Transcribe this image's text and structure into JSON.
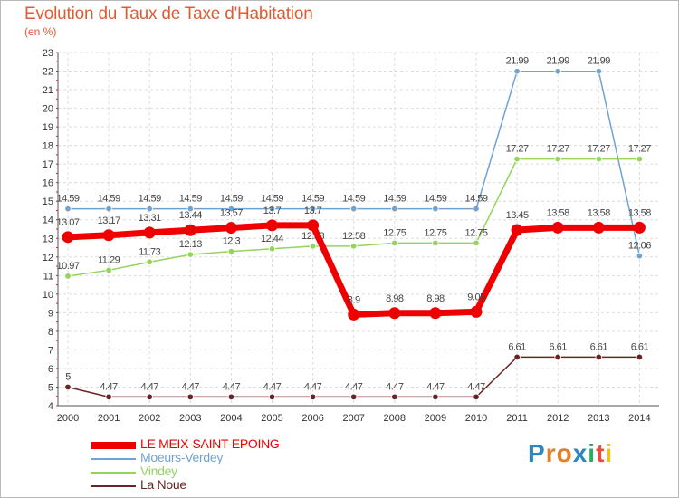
{
  "header": {
    "title": "Evolution du Taux de Taxe d'Habitation",
    "subtitle": "(en %)"
  },
  "logo": {
    "text": "Proxiti",
    "colors": [
      "#2e86c1",
      "#e67e22",
      "#e67e22",
      "#2e86c1",
      "#27ae60",
      "#e74c3c",
      "#f1c40f"
    ]
  },
  "chart_data": {
    "type": "line",
    "title": "Evolution du Taux de Taxe d'Habitation",
    "subtitle": "(en %)",
    "x": [
      "2000",
      "2001",
      "2002",
      "2003",
      "2004",
      "2005",
      "2006",
      "2007",
      "2008",
      "2009",
      "2010",
      "2011",
      "2012",
      "2013",
      "2014"
    ],
    "yticks": [
      4,
      5,
      6,
      7,
      8,
      9,
      10,
      11,
      12,
      13,
      14,
      15,
      16,
      17,
      18,
      19,
      20,
      21,
      22,
      23
    ],
    "ylim": [
      4,
      23
    ],
    "grid": true,
    "legend_position": "bottom-left",
    "series": [
      {
        "name": "Moeurs-Verdey",
        "color": "#6fa4d2",
        "values": [
          14.59,
          14.59,
          14.59,
          14.59,
          14.59,
          14.59,
          14.59,
          14.59,
          14.59,
          14.59,
          14.59,
          21.99,
          21.99,
          21.99,
          12.06
        ],
        "labels": [
          "14.59",
          "14.59",
          "14.59",
          "14.59",
          "14.59",
          "14.59",
          "14.59",
          "14.59",
          "14.59",
          "14.59",
          "14.59",
          "21.99",
          "21.99",
          "21.99",
          "12.06"
        ]
      },
      {
        "name": "Vindey",
        "color": "#94d35c",
        "values": [
          10.97,
          11.29,
          11.73,
          12.13,
          12.3,
          12.44,
          12.58,
          12.58,
          12.75,
          12.75,
          12.75,
          17.27,
          17.27,
          17.27,
          17.27
        ],
        "labels": [
          "10.97",
          "11.29",
          "11.73",
          "12.13",
          "12.3",
          "12.44",
          "12.58",
          "12.58",
          "12.75",
          "12.75",
          "12.75",
          "17.27",
          "17.27",
          "17.27",
          "17.27"
        ]
      },
      {
        "name": "La Noue",
        "color": "#6b2323",
        "values": [
          5,
          4.47,
          4.47,
          4.47,
          4.47,
          4.47,
          4.47,
          4.47,
          4.47,
          4.47,
          4.47,
          6.61,
          6.61,
          6.61,
          6.61
        ],
        "labels": [
          "5",
          "4.47",
          "4.47",
          "4.47",
          "4.47",
          "4.47",
          "4.47",
          "4.47",
          "4.47",
          "4.47",
          "4.47",
          "6.61",
          "6.61",
          "6.61",
          "6.61"
        ]
      },
      {
        "name": "LE MEIX-SAINT-EPOING",
        "color": "#ee0000",
        "values": [
          13.07,
          13.17,
          13.31,
          13.44,
          13.57,
          13.7,
          13.7,
          8.9,
          8.98,
          8.98,
          9.05,
          13.45,
          13.58,
          13.58,
          13.58
        ],
        "labels": [
          "13.07",
          "13.17",
          "13.31",
          "13.44",
          "13.57",
          "13.7",
          "13.7",
          "8.9",
          "8.98",
          "8.98",
          "9.05",
          "13.45",
          "13.58",
          "13.58",
          "13.58"
        ]
      }
    ]
  }
}
